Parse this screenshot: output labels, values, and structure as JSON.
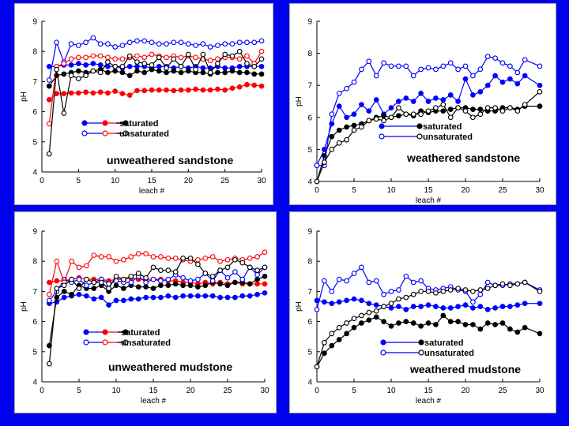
{
  "chart_data": [
    {
      "type": "line",
      "title": "unweathered sandstone",
      "xlabel": "leach #",
      "ylabel": "pH",
      "xlim": [
        0,
        30
      ],
      "ylim": [
        4,
        9
      ],
      "xticks": [
        0,
        5,
        10,
        15,
        20,
        25,
        30
      ],
      "yticks": [
        4,
        5,
        6,
        7,
        8,
        9
      ],
      "legend": {
        "saturated": "saturated",
        "unsaturated": "unsaturated"
      },
      "x": [
        1,
        2,
        3,
        4,
        5,
        6,
        7,
        8,
        9,
        10,
        11,
        12,
        13,
        14,
        15,
        16,
        17,
        18,
        19,
        20,
        21,
        22,
        23,
        24,
        25,
        26,
        27,
        28,
        29,
        30
      ],
      "series": [
        {
          "name": "saturated",
          "color": "#0000ff",
          "marker": "filled",
          "values": [
            7.5,
            7.5,
            7.55,
            7.55,
            7.6,
            7.55,
            7.6,
            7.55,
            7.5,
            7.5,
            7.45,
            7.5,
            7.5,
            7.5,
            7.45,
            7.5,
            7.5,
            7.45,
            7.5,
            7.45,
            7.5,
            7.45,
            7.45,
            7.5,
            7.45,
            7.45,
            7.5,
            7.5,
            7.5,
            7.5
          ]
        },
        {
          "name": "saturated",
          "color": "#ff0000",
          "marker": "filled",
          "values": [
            6.4,
            6.6,
            6.6,
            6.62,
            6.62,
            6.65,
            6.62,
            6.65,
            6.62,
            6.68,
            6.6,
            6.55,
            6.7,
            6.7,
            6.72,
            6.72,
            6.72,
            6.7,
            6.72,
            6.72,
            6.75,
            6.72,
            6.72,
            6.75,
            6.72,
            6.78,
            6.82,
            6.9,
            6.88,
            6.85
          ]
        },
        {
          "name": "saturated",
          "color": "#000000",
          "marker": "filled",
          "values": [
            6.85,
            7.2,
            7.25,
            7.3,
            7.35,
            7.3,
            7.35,
            7.4,
            7.3,
            7.35,
            7.3,
            7.2,
            7.35,
            7.3,
            7.4,
            7.35,
            7.3,
            7.35,
            7.3,
            7.35,
            7.3,
            7.3,
            7.25,
            7.3,
            7.3,
            7.35,
            7.3,
            7.3,
            7.25,
            7.25
          ]
        },
        {
          "name": "unsaturated",
          "color": "#0000ff",
          "marker": "open",
          "values": [
            7.05,
            8.3,
            7.65,
            8.25,
            8.2,
            8.3,
            8.45,
            8.25,
            8.25,
            8.15,
            8.2,
            8.3,
            8.35,
            8.35,
            8.3,
            8.25,
            8.25,
            8.3,
            8.3,
            8.25,
            8.2,
            8.25,
            8.15,
            8.2,
            8.25,
            8.25,
            8.3,
            8.3,
            8.3,
            8.35
          ]
        },
        {
          "name": "unsaturated",
          "color": "#ff0000",
          "marker": "open",
          "values": [
            5.6,
            7.5,
            7.6,
            7.75,
            7.8,
            7.8,
            7.85,
            7.85,
            7.8,
            7.75,
            7.75,
            7.8,
            7.85,
            7.8,
            7.9,
            7.85,
            7.8,
            7.85,
            7.8,
            7.85,
            7.8,
            7.75,
            7.7,
            7.75,
            7.8,
            7.8,
            7.75,
            7.85,
            7.6,
            8.0
          ]
        },
        {
          "name": "unsaturated",
          "color": "#000000",
          "marker": "open",
          "values": [
            4.6,
            7.4,
            5.95,
            7.2,
            7.1,
            7.2,
            7.35,
            7.3,
            7.65,
            7.5,
            7.5,
            7.85,
            7.65,
            7.6,
            7.55,
            7.8,
            7.45,
            7.75,
            7.5,
            7.9,
            7.4,
            7.9,
            7.3,
            7.6,
            7.9,
            7.85,
            8.0,
            7.6,
            7.5,
            7.75
          ]
        }
      ]
    },
    {
      "type": "line",
      "title": "weathered sandstone",
      "xlabel": "leach #",
      "ylabel": "pH",
      "xlim": [
        0,
        30
      ],
      "ylim": [
        4,
        9
      ],
      "xticks": [
        0,
        5,
        10,
        15,
        20,
        25,
        30
      ],
      "yticks": [
        4,
        5,
        6,
        7,
        8,
        9
      ],
      "legend": {
        "saturated": "saturated",
        "unsaturated": "unsaturated"
      },
      "x": [
        0,
        1,
        2,
        3,
        4,
        5,
        6,
        7,
        8,
        9,
        10,
        11,
        12,
        13,
        14,
        15,
        16,
        17,
        18,
        19,
        20,
        21,
        22,
        23,
        24,
        25,
        26,
        27,
        28,
        30
      ],
      "series": [
        {
          "name": "saturated",
          "color": "#0000ff",
          "marker": "filled",
          "values": [
            4.5,
            5.0,
            5.8,
            6.35,
            6.0,
            6.1,
            6.4,
            6.2,
            6.55,
            6.1,
            6.3,
            6.5,
            6.6,
            6.5,
            6.75,
            6.5,
            6.6,
            6.55,
            6.7,
            6.5,
            7.2,
            6.7,
            6.8,
            7.0,
            7.3,
            7.1,
            7.2,
            7.05,
            7.3,
            7.0
          ]
        },
        {
          "name": "saturated",
          "color": "#000000",
          "marker": "filled",
          "values": [
            4.0,
            4.8,
            5.4,
            5.6,
            5.7,
            5.75,
            5.8,
            5.9,
            6.0,
            6.05,
            6.0,
            6.05,
            6.1,
            6.05,
            6.2,
            6.15,
            6.2,
            6.2,
            6.25,
            6.3,
            6.3,
            6.25,
            6.25,
            6.2,
            6.2,
            6.3,
            6.3,
            6.25,
            6.35,
            6.35
          ]
        },
        {
          "name": "unsaturated",
          "color": "#0000ff",
          "marker": "open",
          "values": [
            4.5,
            4.5,
            6.1,
            6.75,
            6.9,
            7.1,
            7.5,
            7.75,
            7.3,
            7.7,
            7.6,
            7.6,
            7.6,
            7.3,
            7.5,
            7.55,
            7.5,
            7.6,
            7.7,
            7.5,
            7.6,
            7.3,
            7.5,
            7.9,
            7.85,
            7.7,
            7.6,
            7.4,
            7.8,
            7.6
          ]
        },
        {
          "name": "unsaturated",
          "color": "#000000",
          "marker": "open",
          "values": [
            4.0,
            4.6,
            5.0,
            5.2,
            5.3,
            5.6,
            5.7,
            5.9,
            5.95,
            5.9,
            6.0,
            6.3,
            6.1,
            6.1,
            6.1,
            6.2,
            6.3,
            6.4,
            6.0,
            6.3,
            6.2,
            6.0,
            6.1,
            6.3,
            6.3,
            6.2,
            6.3,
            6.2,
            6.4,
            6.8
          ]
        }
      ]
    },
    {
      "type": "line",
      "title": "unweathered mudstone",
      "xlabel": "leach #",
      "ylabel": "pH",
      "xlim": [
        0,
        30
      ],
      "ylim": [
        4,
        9
      ],
      "xticks": [
        0,
        5,
        10,
        15,
        20,
        25,
        30
      ],
      "yticks": [
        4,
        5,
        6,
        7,
        8,
        9
      ],
      "legend": {
        "saturated": "saturated",
        "unsaturated": "unsaturated"
      },
      "x": [
        1,
        2,
        3,
        4,
        5,
        6,
        7,
        8,
        9,
        10,
        11,
        12,
        13,
        14,
        15,
        16,
        17,
        18,
        19,
        20,
        21,
        22,
        23,
        24,
        25,
        26,
        27,
        28,
        29,
        30
      ],
      "series": [
        {
          "name": "saturated",
          "color": "#0000ff",
          "marker": "filled",
          "values": [
            6.6,
            6.65,
            6.8,
            6.85,
            6.9,
            6.85,
            6.75,
            6.8,
            6.55,
            6.7,
            6.7,
            6.75,
            6.75,
            6.8,
            6.8,
            6.8,
            6.85,
            6.8,
            6.85,
            6.85,
            6.85,
            6.85,
            6.85,
            6.8,
            6.8,
            6.8,
            6.85,
            6.85,
            6.9,
            6.95
          ]
        },
        {
          "name": "saturated",
          "color": "#ff0000",
          "marker": "filled",
          "values": [
            7.3,
            7.35,
            7.35,
            7.4,
            7.45,
            7.4,
            7.4,
            7.4,
            7.35,
            7.4,
            7.4,
            7.45,
            7.4,
            7.4,
            7.4,
            7.4,
            7.35,
            7.35,
            7.3,
            7.3,
            7.25,
            7.3,
            7.25,
            7.3,
            7.25,
            7.3,
            7.25,
            7.25,
            7.25,
            7.25
          ]
        },
        {
          "name": "saturated",
          "color": "#000000",
          "marker": "filled",
          "values": [
            5.2,
            6.8,
            7.0,
            6.9,
            7.2,
            7.1,
            7.1,
            7.2,
            7.0,
            7.2,
            7.1,
            7.2,
            7.15,
            7.15,
            7.1,
            7.2,
            7.2,
            7.25,
            7.2,
            7.2,
            7.15,
            7.2,
            7.3,
            7.25,
            7.2,
            7.3,
            7.3,
            7.25,
            7.4,
            7.5
          ]
        },
        {
          "name": "unsaturated",
          "color": "#0000ff",
          "marker": "open",
          "values": [
            6.7,
            7.0,
            7.4,
            7.3,
            7.4,
            7.2,
            7.3,
            7.4,
            7.25,
            7.35,
            7.3,
            7.3,
            7.5,
            7.3,
            7.4,
            7.35,
            7.4,
            7.55,
            7.45,
            7.35,
            7.4,
            7.6,
            7.35,
            7.7,
            7.45,
            7.65,
            7.4,
            7.8,
            7.55,
            7.8
          ]
        },
        {
          "name": "unsaturated",
          "color": "#ff0000",
          "marker": "open",
          "values": [
            6.9,
            8.0,
            7.3,
            8.0,
            7.8,
            7.85,
            8.2,
            8.15,
            8.15,
            8.0,
            8.05,
            8.15,
            8.25,
            8.25,
            8.15,
            8.15,
            8.1,
            8.1,
            8.05,
            8.0,
            8.05,
            8.1,
            8.15,
            8.0,
            8.05,
            8.1,
            8.05,
            8.1,
            8.15,
            8.3
          ]
        },
        {
          "name": "unsaturated",
          "color": "#000000",
          "marker": "open",
          "values": [
            4.6,
            7.1,
            7.2,
            7.4,
            7.1,
            7.4,
            7.3,
            7.3,
            7.1,
            7.5,
            7.4,
            7.5,
            7.6,
            7.45,
            7.8,
            7.7,
            7.7,
            7.65,
            8.1,
            8.1,
            7.9,
            7.6,
            7.5,
            7.7,
            7.8,
            8.05,
            7.95,
            7.8,
            7.7,
            7.8
          ]
        }
      ]
    },
    {
      "type": "line",
      "title": "weathered mudstone",
      "xlabel": "leach #",
      "ylabel": "pH",
      "xlim": [
        0,
        30
      ],
      "ylim": [
        4,
        9
      ],
      "xticks": [
        0,
        5,
        10,
        15,
        20,
        25,
        30
      ],
      "yticks": [
        4,
        5,
        6,
        7,
        8,
        9
      ],
      "legend": {
        "saturated": "saturated",
        "unsaturated": "unsaturated"
      },
      "x": [
        0,
        1,
        2,
        3,
        4,
        5,
        6,
        7,
        8,
        9,
        10,
        11,
        12,
        13,
        14,
        15,
        16,
        17,
        18,
        19,
        20,
        21,
        22,
        23,
        24,
        25,
        26,
        27,
        28,
        30
      ],
      "series": [
        {
          "name": "saturated",
          "color": "#0000ff",
          "marker": "filled",
          "values": [
            6.7,
            6.65,
            6.6,
            6.65,
            6.7,
            6.75,
            6.7,
            6.6,
            6.55,
            6.5,
            6.45,
            6.5,
            6.4,
            6.5,
            6.5,
            6.55,
            6.5,
            6.45,
            6.45,
            6.5,
            6.55,
            6.45,
            6.5,
            6.4,
            6.45,
            6.5,
            6.5,
            6.55,
            6.6,
            6.6
          ]
        },
        {
          "name": "saturated",
          "color": "#000000",
          "marker": "filled",
          "values": [
            4.5,
            4.95,
            5.2,
            5.4,
            5.6,
            5.8,
            5.95,
            6.05,
            6.15,
            6.0,
            5.85,
            5.95,
            6.0,
            5.95,
            5.85,
            5.95,
            5.9,
            6.2,
            6.0,
            6.0,
            5.9,
            5.9,
            5.75,
            5.95,
            5.9,
            5.95,
            5.75,
            5.65,
            5.8,
            5.6
          ]
        },
        {
          "name": "unsaturated",
          "color": "#0000ff",
          "marker": "open",
          "values": [
            6.4,
            7.35,
            7.0,
            7.4,
            7.35,
            7.6,
            7.8,
            7.3,
            7.35,
            6.9,
            7.0,
            7.05,
            7.5,
            7.3,
            7.35,
            7.1,
            7.05,
            7.1,
            7.15,
            7.05,
            7.0,
            6.65,
            6.9,
            7.3,
            7.2,
            7.2,
            7.25,
            7.25,
            7.3,
            7.05
          ]
        },
        {
          "name": "unsaturated",
          "color": "#000000",
          "marker": "open",
          "values": [
            4.5,
            5.3,
            5.6,
            5.8,
            5.95,
            6.1,
            6.2,
            6.3,
            6.35,
            6.5,
            6.6,
            6.75,
            6.8,
            6.9,
            7.0,
            7.0,
            6.95,
            7.0,
            7.05,
            7.1,
            7.05,
            7.0,
            7.05,
            7.1,
            7.2,
            7.25,
            7.2,
            7.25,
            7.3,
            7.0
          ]
        }
      ]
    }
  ]
}
